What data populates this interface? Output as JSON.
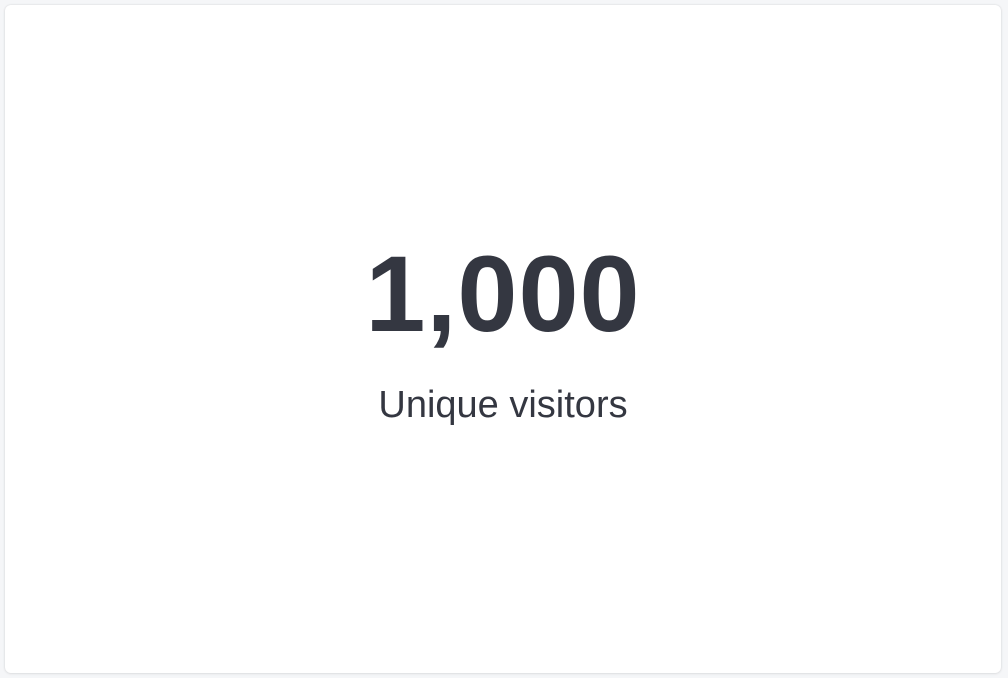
{
  "metric": {
    "value": "1,000",
    "label": "Unique visitors",
    "text_color": "#343741"
  }
}
